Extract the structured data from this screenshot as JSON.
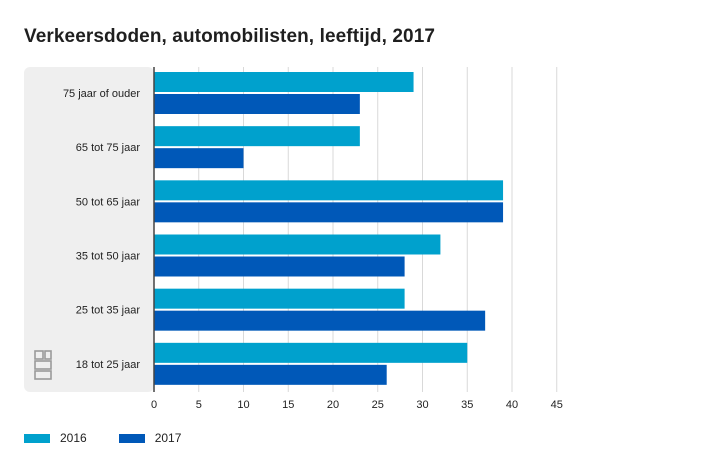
{
  "title": "Verkeersdoden, automobilisten, leeftijd, 2017",
  "colors": {
    "2016": "#00a1cd",
    "2017": "#0058b8",
    "panel": "#efefef",
    "grid": "#d9d9d9",
    "axis": "#444444"
  },
  "chart_data": {
    "type": "bar",
    "orientation": "horizontal",
    "title": "Verkeersdoden, automobilisten, leeftijd, 2017",
    "categories": [
      "75 jaar of ouder",
      "65 tot 75 jaar",
      "50 tot 65 jaar",
      "35 tot 50 jaar",
      "25 tot 35 jaar",
      "18 tot 25 jaar"
    ],
    "series": [
      {
        "name": "2016",
        "color": "#00a1cd",
        "values": [
          29,
          23,
          39,
          32,
          28,
          35
        ]
      },
      {
        "name": "2017",
        "color": "#0058b8",
        "values": [
          23,
          10,
          39,
          28,
          37,
          26
        ]
      }
    ],
    "xticks": [
      "0",
      "5",
      "10",
      "15",
      "20",
      "25",
      "30",
      "35",
      "40",
      "45"
    ],
    "xlim": [
      0,
      45
    ],
    "grid": true,
    "legend_position": "bottom-left"
  }
}
